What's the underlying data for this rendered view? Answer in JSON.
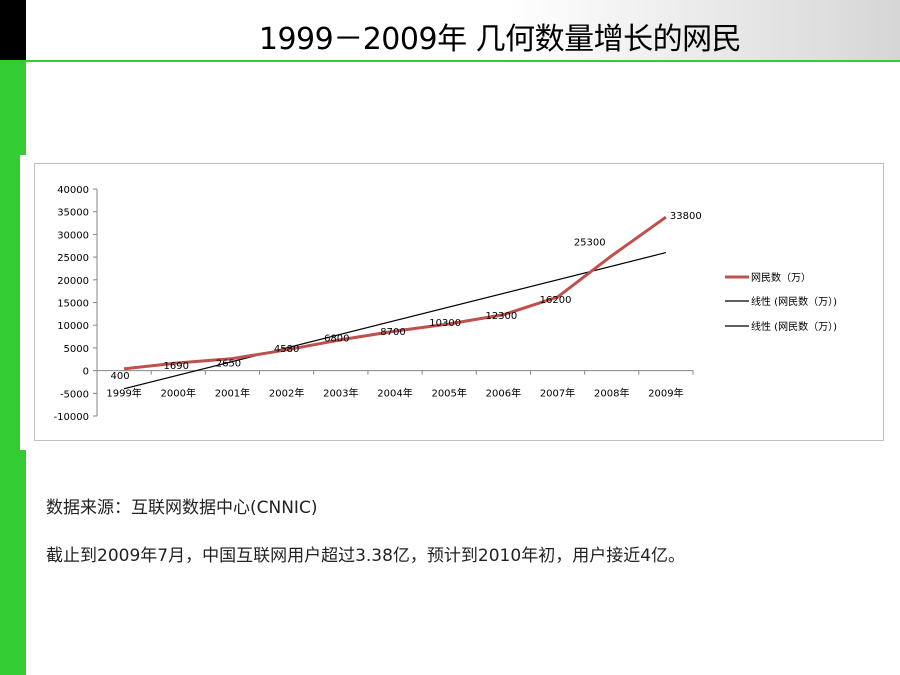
{
  "slide": {
    "title": "1999－2009年  几何数量增长的网民"
  },
  "text": {
    "source": "数据来源：互联网数据中心(CNNIC)",
    "note": "截止到2009年7月，中国互联网用户超过3.38亿，预计到2010年初，用户接近4亿。"
  },
  "colors": {
    "accent_green": "#33cc33",
    "series_red": "#c0504d",
    "trend_black": "#000000"
  },
  "chart_data": {
    "type": "line",
    "categories": [
      "1999年",
      "2000年",
      "2001年",
      "2002年",
      "2003年",
      "2004年",
      "2005年",
      "2006年",
      "2007年",
      "2008年",
      "2009年"
    ],
    "series": [
      {
        "name": "网民数（万）",
        "values": [
          400,
          1690,
          2650,
          4580,
          6800,
          8700,
          10300,
          12300,
          16200,
          25300,
          33800
        ],
        "data_labels": [
          "400",
          "1690",
          "2650",
          "4580",
          "6800",
          "8700",
          "10300",
          "12300",
          "16200",
          "25300",
          "33800"
        ]
      }
    ],
    "trendlines": [
      {
        "name": "线性 (网民数（万）)",
        "start": -4000,
        "end": 26000
      },
      {
        "name": "线性 (网民数（万）)",
        "start": -4000,
        "end": 26000
      }
    ],
    "legend": [
      "网民数（万）",
      "线性 (网民数（万）)",
      "线性 (网民数（万）)"
    ],
    "y_ticks": [
      "40000",
      "35000",
      "30000",
      "25000",
      "20000",
      "15000",
      "10000",
      "5000",
      "0",
      "-5000",
      "-10000"
    ],
    "ylim": [
      -10000,
      40000
    ],
    "legend_position": "right",
    "grid": false
  }
}
